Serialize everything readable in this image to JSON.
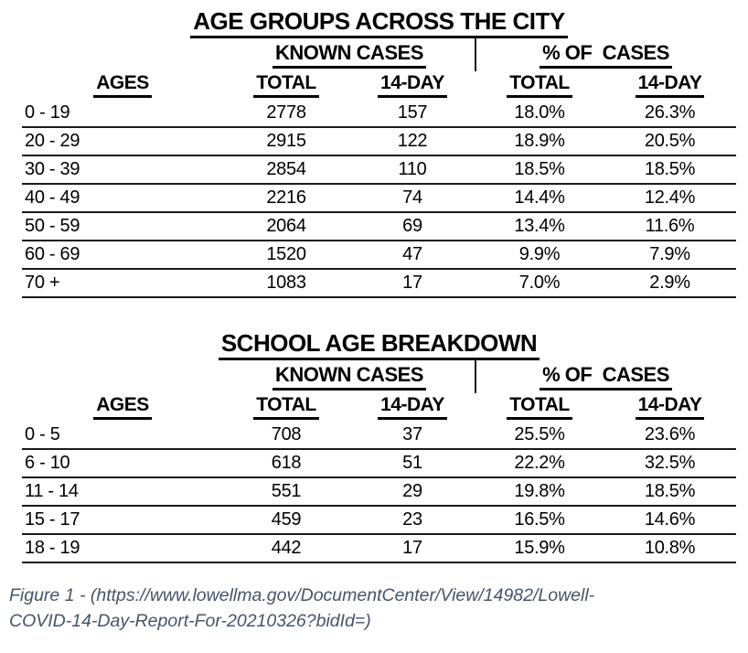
{
  "colors": {
    "text": "#000000",
    "rule": "#1a1a1a",
    "caption": "#44546A",
    "background": "#ffffff"
  },
  "tables": [
    {
      "title": "AGE GROUPS ACROSS THE CITY",
      "group_headers": {
        "left": "KNOWN CASES",
        "right": "% OF  CASES"
      },
      "columns": [
        "AGES",
        "TOTAL",
        "14-DAY",
        "TOTAL",
        "14-DAY"
      ],
      "rows": [
        {
          "ages": "0 - 19",
          "known_total": "2778",
          "known_14day": "157",
          "pct_total": "18.0%",
          "pct_14day": "26.3%"
        },
        {
          "ages": "20 - 29",
          "known_total": "2915",
          "known_14day": "122",
          "pct_total": "18.9%",
          "pct_14day": "20.5%"
        },
        {
          "ages": "30 - 39",
          "known_total": "2854",
          "known_14day": "110",
          "pct_total": "18.5%",
          "pct_14day": "18.5%"
        },
        {
          "ages": "40 - 49",
          "known_total": "2216",
          "known_14day": "74",
          "pct_total": "14.4%",
          "pct_14day": "12.4%"
        },
        {
          "ages": "50 - 59",
          "known_total": "2064",
          "known_14day": "69",
          "pct_total": "13.4%",
          "pct_14day": "11.6%"
        },
        {
          "ages": "60 - 69",
          "known_total": "1520",
          "known_14day": "47",
          "pct_total": "9.9%",
          "pct_14day": "7.9%"
        },
        {
          "ages": "70 +",
          "known_total": "1083",
          "known_14day": "17",
          "pct_total": "7.0%",
          "pct_14day": "2.9%"
        }
      ]
    },
    {
      "title": "SCHOOL AGE BREAKDOWN",
      "group_headers": {
        "left": "KNOWN CASES",
        "right": "% OF  CASES"
      },
      "columns": [
        "AGES",
        "TOTAL",
        "14-DAY",
        "TOTAL",
        "14-DAY"
      ],
      "rows": [
        {
          "ages": "0 - 5",
          "known_total": "708",
          "known_14day": "37",
          "pct_total": "25.5%",
          "pct_14day": "23.6%"
        },
        {
          "ages": "6 - 10",
          "known_total": "618",
          "known_14day": "51",
          "pct_total": "22.2%",
          "pct_14day": "32.5%"
        },
        {
          "ages": "11 - 14",
          "known_total": "551",
          "known_14day": "29",
          "pct_total": "19.8%",
          "pct_14day": "18.5%"
        },
        {
          "ages": "15 - 17",
          "known_total": "459",
          "known_14day": "23",
          "pct_total": "16.5%",
          "pct_14day": "14.6%"
        },
        {
          "ages": "18 - 19",
          "known_total": "442",
          "known_14day": "17",
          "pct_total": "15.9%",
          "pct_14day": "10.8%"
        }
      ]
    }
  ],
  "caption": {
    "line1": "Figure 1 - (https://www.lowellma.gov/DocumentCenter/View/14982/Lowell-",
    "line2": "COVID-14-Day-Report-For-20210326?bidId=)"
  }
}
